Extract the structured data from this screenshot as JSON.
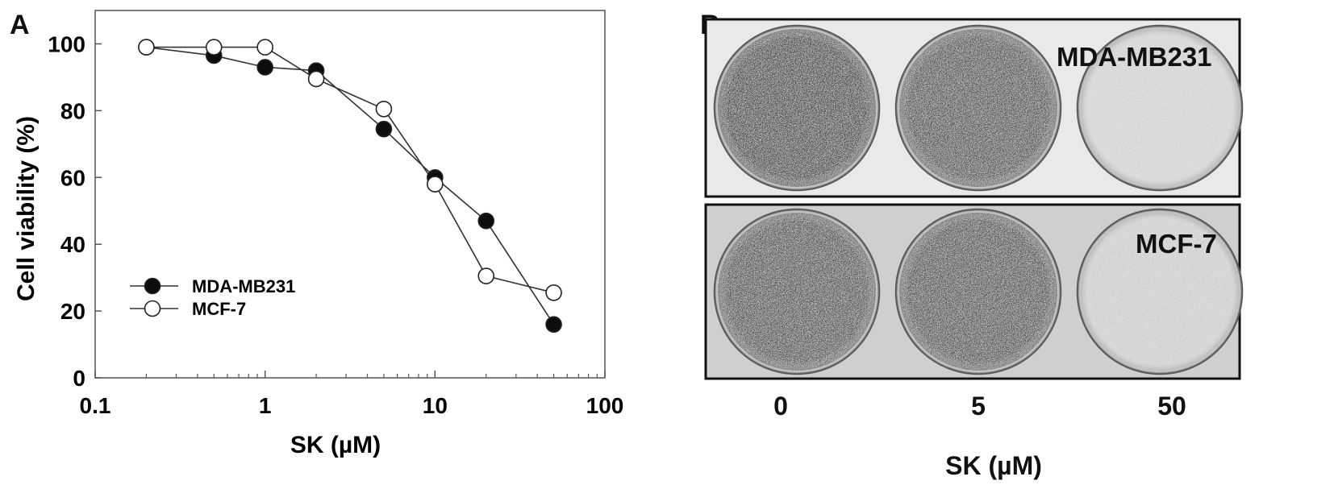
{
  "panel_a_label": "A",
  "panel_b_label": "B",
  "chart_data": {
    "type": "line",
    "xlabel": "SK (µM)",
    "ylabel": "Cell viability (%)",
    "x_scale": "log",
    "xlim": [
      0.1,
      100
    ],
    "ylim": [
      0,
      110
    ],
    "x_tick_labels": [
      "0.1",
      "1",
      "10",
      "100"
    ],
    "x_ticks": [
      0.1,
      1,
      10,
      100
    ],
    "y_ticks": [
      0,
      20,
      40,
      60,
      80,
      100
    ],
    "grid": false,
    "legend_position": "lower-left",
    "series": [
      {
        "name": "MDA-MB231",
        "marker": "filled-circle",
        "color": "#111111",
        "x": [
          0.2,
          0.5,
          1,
          2,
          5,
          10,
          20,
          50
        ],
        "y": [
          99,
          96.5,
          93,
          92,
          74.5,
          60,
          47,
          16
        ]
      },
      {
        "name": "MCF-7",
        "marker": "open-circle",
        "color": "#111111",
        "x": [
          0.2,
          0.5,
          1,
          2,
          5,
          10,
          20,
          50
        ],
        "y": [
          99,
          99,
          99,
          89.5,
          80.5,
          58,
          30.5,
          25.5
        ]
      }
    ]
  },
  "photo_panel": {
    "plates": [
      {
        "cell_line": "MDA-MB231",
        "viability_shading": [
          0.78,
          0.72,
          0.1
        ]
      },
      {
        "cell_line": "MCF-7",
        "viability_shading": [
          0.72,
          0.72,
          0.12
        ]
      }
    ],
    "dish_labels": [
      "0",
      "5",
      "50"
    ],
    "xlabel": "SK (µM)"
  }
}
